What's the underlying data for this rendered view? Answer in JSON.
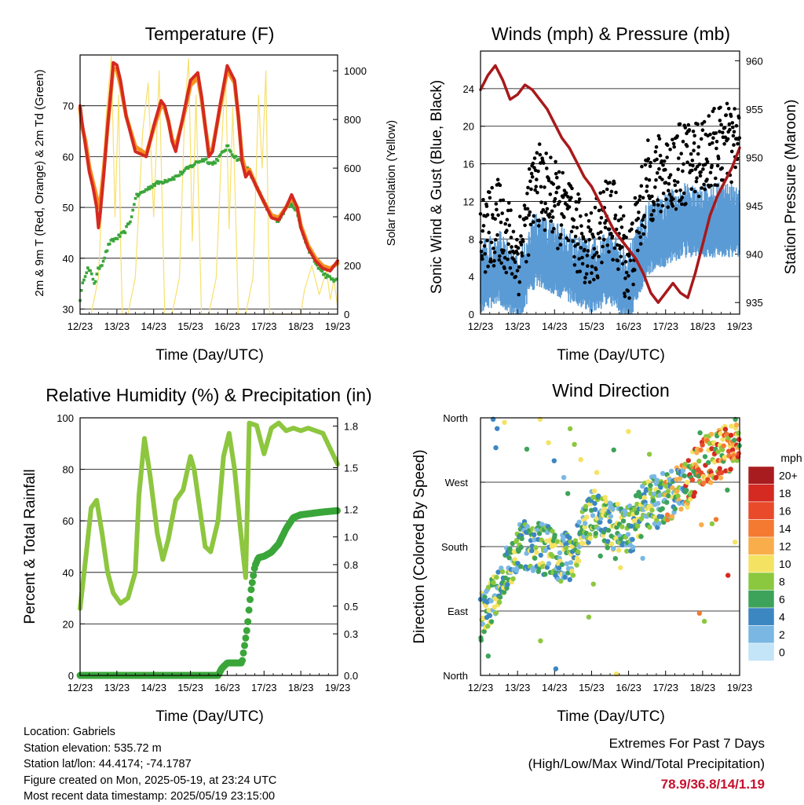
{
  "info": {
    "location": "Location: Gabriels",
    "elevation": "Station elevation: 535.72 m",
    "latlon": "Station lat/lon: 44.4174; -74.1787",
    "created": "Figure created on Mon, 2025-05-19, at 23:24 UTC",
    "recent": "Most recent data timestamp: 2025/05/19 23:15:00"
  },
  "extremes": {
    "title": "Extremes For Past 7 Days",
    "subtitle": "(High/Low/Max Wind/Total Precipitation)",
    "values": "78.9/36.8/14/1.19"
  },
  "chart_data": [
    {
      "type": "line",
      "title": "Temperature (F)",
      "xlabel": "Time (Day/UTC)",
      "ylabel": "2m & 9m T (Red, Orange) & 2m Td (Green)",
      "ylabel_right": "Solar Insolation (Yellow)",
      "x_ticks": [
        "12/23",
        "13/23",
        "14/23",
        "15/23",
        "16/23",
        "17/23",
        "18/23",
        "19/23"
      ],
      "ylim": [
        29,
        80
      ],
      "y_ticks": [
        30,
        40,
        50,
        60,
        70
      ],
      "ylim_right": [
        0,
        1065
      ],
      "y_ticks_right": [
        0,
        200,
        400,
        600,
        800,
        1000
      ],
      "grid_y": [
        30,
        40,
        50,
        60,
        70
      ],
      "colors": {
        "temp2m": "#d42a21",
        "temp9m": "#f6911e",
        "dewpoint": "#3aa63a",
        "solar": "#f7e06b"
      },
      "series": [
        {
          "key": "temp2m",
          "x": [
            0,
            0.05,
            0.15,
            0.25,
            0.35,
            0.45,
            0.5,
            0.55,
            0.65,
            0.75,
            0.85,
            0.9,
            1.0,
            1.1,
            1.25,
            1.5,
            1.8,
            2.0,
            2.2,
            2.3,
            2.4,
            2.5,
            2.6,
            2.8,
            3.0,
            3.2,
            3.3,
            3.4,
            3.5,
            3.6,
            3.8,
            4.0,
            4.2,
            4.3,
            4.4,
            4.5,
            4.6,
            4.8,
            5.0,
            5.2,
            5.4,
            5.6,
            5.75,
            5.9,
            6.0,
            6.2,
            6.4,
            6.6,
            6.8,
            7.0
          ],
          "values": [
            70,
            67,
            62,
            57,
            54,
            50,
            46,
            49,
            57,
            66,
            74,
            78.5,
            78,
            75,
            68,
            61,
            60,
            66,
            71,
            70,
            67,
            63,
            61,
            68,
            75,
            76.5,
            72,
            66,
            60,
            61,
            70,
            77.9,
            75,
            68,
            59,
            56,
            57,
            54,
            51,
            48,
            47.5,
            50,
            52.5,
            50,
            46,
            42,
            39.5,
            38,
            37.5,
            39.5
          ]
        },
        {
          "key": "temp9m",
          "x": [
            0,
            0.05,
            0.15,
            0.25,
            0.35,
            0.45,
            0.5,
            0.55,
            0.65,
            0.75,
            0.85,
            0.9,
            1.0,
            1.1,
            1.25,
            1.5,
            1.8,
            2.0,
            2.2,
            2.3,
            2.4,
            2.5,
            2.6,
            2.8,
            3.0,
            3.2,
            3.3,
            3.4,
            3.5,
            3.6,
            3.8,
            4.0,
            4.2,
            4.3,
            4.4,
            4.5,
            4.6,
            4.8,
            5.0,
            5.2,
            5.4,
            5.6,
            5.75,
            5.9,
            6.0,
            6.2,
            6.4,
            6.6,
            6.8,
            7.0
          ],
          "values": [
            69.5,
            66,
            63,
            58,
            55,
            52,
            50,
            51,
            58,
            66,
            73.5,
            77.5,
            77,
            74,
            68,
            62,
            60.5,
            65.5,
            70,
            69.5,
            67,
            63.5,
            62,
            67.5,
            74,
            75.5,
            71.5,
            66,
            61,
            61.5,
            69.5,
            77,
            74.5,
            68,
            60,
            57,
            57.5,
            54,
            51,
            48.5,
            48,
            50,
            52,
            50,
            46.5,
            42.5,
            40,
            38.5,
            38,
            39
          ]
        },
        {
          "key": "dewpoint",
          "x": [
            0,
            0.1,
            0.2,
            0.3,
            0.4,
            0.5,
            0.6,
            0.8,
            1.0,
            1.2,
            1.4,
            1.5,
            1.7,
            1.9,
            2.0,
            2.2,
            2.4,
            2.6,
            2.8,
            3.0,
            3.2,
            3.4,
            3.6,
            3.8,
            4.0,
            4.2,
            4.4,
            4.6,
            4.8,
            5.0,
            5.2,
            5.4,
            5.6,
            5.75,
            5.9,
            6.0,
            6.2,
            6.4,
            6.6,
            6.8,
            7.0
          ],
          "values": [
            32,
            36,
            38,
            37,
            35,
            38,
            39,
            43,
            44,
            45,
            48,
            52,
            53,
            54,
            54.5,
            55,
            55.5,
            56,
            57,
            58,
            59,
            59.5,
            58.5,
            60,
            62,
            60,
            59,
            57,
            54,
            51,
            48,
            47.5,
            50,
            51,
            49,
            46,
            42,
            39,
            37,
            36,
            35.5
          ]
        },
        {
          "key": "solar",
          "x": [
            0.3,
            0.5,
            0.7,
            0.85,
            0.95,
            1.05,
            1.1,
            1.15,
            1.3,
            1.5,
            1.7,
            1.85,
            2.0,
            2.15,
            2.3,
            2.5,
            2.7,
            2.85,
            2.95,
            3.05,
            3.15,
            3.3,
            3.5,
            3.7,
            3.85,
            3.95,
            4.05,
            4.15,
            4.3,
            4.5,
            4.7,
            4.85,
            4.95,
            5.05,
            5.15,
            5.3,
            5.5,
            5.8,
            6.0,
            6.1,
            6.3,
            6.5,
            6.7,
            6.8,
            6.9,
            7.0
          ],
          "values": [
            0,
            150,
            800,
            1060,
            400,
            900,
            300,
            0,
            0,
            150,
            750,
            950,
            400,
            1000,
            0,
            0,
            150,
            850,
            1050,
            300,
            900,
            0,
            0,
            150,
            700,
            1000,
            350,
            850,
            0,
            0,
            150,
            900,
            600,
            1000,
            0,
            0,
            0,
            0,
            0,
            100,
            200,
            80,
            180,
            60,
            140,
            30
          ]
        }
      ]
    },
    {
      "type": "scatter",
      "title": "Winds (mph) & Pressure (mb)",
      "xlabel": "Time (Day/UTC)",
      "ylabel": "Sonic Wind & Gust (Blue, Black)",
      "ylabel_right": "Station Pressure (Maroon)",
      "x_ticks": [
        "12/23",
        "13/23",
        "14/23",
        "15/23",
        "16/23",
        "17/23",
        "18/23",
        "19/23"
      ],
      "ylim": [
        0,
        28
      ],
      "y_ticks": [
        0,
        4,
        8,
        12,
        16,
        20,
        24
      ],
      "ylim_right": [
        933.8,
        961
      ],
      "y_ticks_right": [
        935,
        940,
        945,
        950,
        955,
        960
      ],
      "colors": {
        "wind": "#5b9bd5",
        "gust": "#000000",
        "pressure": "#a8191b"
      },
      "wind_profile": {
        "x": [
          0,
          0.5,
          1.0,
          1.5,
          2.0,
          2.5,
          3.0,
          3.5,
          4.0,
          4.5,
          5.0,
          5.5,
          6.0,
          6.5,
          7.0
        ],
        "mean": [
          4,
          5,
          3,
          7,
          6,
          5,
          4,
          5,
          3,
          8,
          9,
          10,
          10,
          10,
          10
        ]
      },
      "gust_profile": {
        "x": [
          0,
          0.5,
          1.0,
          1.5,
          2.0,
          2.5,
          3.0,
          3.5,
          4.0,
          4.5,
          5.0,
          5.5,
          6.0,
          6.5,
          7.0
        ],
        "mean": [
          8,
          10,
          6,
          14,
          12,
          9,
          7,
          11,
          5,
          14,
          15,
          16,
          17,
          18,
          18
        ]
      },
      "series": [
        {
          "key": "pressure",
          "x": [
            0,
            0.2,
            0.4,
            0.6,
            0.8,
            1.0,
            1.2,
            1.4,
            1.6,
            1.8,
            2.0,
            2.2,
            2.4,
            2.6,
            2.8,
            3.0,
            3.2,
            3.4,
            3.6,
            3.8,
            4.0,
            4.2,
            4.4,
            4.6,
            4.8,
            5.0,
            5.2,
            5.4,
            5.6,
            5.8,
            6.0,
            6.2,
            6.4,
            6.6,
            6.8,
            7.0
          ],
          "values": [
            957,
            958.5,
            959.5,
            958,
            956,
            956.5,
            957.5,
            957,
            956,
            955,
            953.5,
            952,
            951,
            949.5,
            948,
            947,
            945.5,
            944,
            942.5,
            941.5,
            940.5,
            939.5,
            938,
            936,
            935,
            936,
            937,
            936,
            935.5,
            938,
            941,
            944,
            946,
            947.5,
            949,
            951
          ]
        }
      ]
    },
    {
      "type": "line",
      "title": "Relative Humidity (%) & Precipitation (in)",
      "xlabel": "Time (Day/UTC)",
      "ylabel": "Percent & Total Rainfall",
      "x_ticks": [
        "12/23",
        "13/23",
        "14/23",
        "15/23",
        "16/23",
        "17/23",
        "18/23",
        "19/23"
      ],
      "ylim": [
        0,
        100
      ],
      "y_ticks": [
        0,
        20,
        40,
        60,
        80,
        100
      ],
      "ylim_right": [
        0,
        1.86
      ],
      "y_ticks_right": [
        "0.0",
        "0.3",
        "0.5",
        "0.8",
        "1.0",
        "1.2",
        "1.5",
        "1.8"
      ],
      "colors": {
        "humidity": "#8dc63f",
        "precip": "#3aa63a"
      },
      "series": [
        {
          "key": "humidity",
          "x": [
            0,
            0.15,
            0.3,
            0.45,
            0.6,
            0.75,
            0.9,
            1.1,
            1.3,
            1.5,
            1.6,
            1.75,
            1.9,
            2.1,
            2.25,
            2.4,
            2.6,
            2.8,
            3.0,
            3.1,
            3.25,
            3.4,
            3.55,
            3.75,
            3.9,
            4.05,
            4.2,
            4.35,
            4.5,
            4.6,
            4.8,
            5.0,
            5.2,
            5.4,
            5.6,
            5.8,
            6.0,
            6.2,
            6.4,
            6.6,
            6.8,
            7.0
          ],
          "values": [
            26,
            45,
            65,
            68,
            55,
            40,
            32,
            28,
            30,
            40,
            70,
            92,
            78,
            55,
            45,
            53,
            68,
            72,
            85,
            80,
            65,
            50,
            48,
            60,
            85,
            94,
            80,
            58,
            38,
            98,
            97,
            86,
            96,
            98,
            95,
            96,
            95,
            96,
            95,
            94,
            88,
            82
          ]
        },
        {
          "key": "precip",
          "x": [
            0,
            0.5,
            1.0,
            1.5,
            2.0,
            2.5,
            3.0,
            3.5,
            3.75,
            3.85,
            4.0,
            4.2,
            4.4,
            4.55,
            4.6,
            4.65,
            4.75,
            4.85,
            5.0,
            5.2,
            5.4,
            5.6,
            5.8,
            6.0,
            6.3,
            6.6,
            7.0
          ],
          "values": [
            0,
            0,
            0,
            0,
            0,
            0,
            0,
            0,
            0,
            0.05,
            0.09,
            0.09,
            0.09,
            0.36,
            0.5,
            0.62,
            0.79,
            0.85,
            0.86,
            0.89,
            0.95,
            1.06,
            1.14,
            1.16,
            1.17,
            1.18,
            1.19
          ]
        }
      ]
    },
    {
      "type": "scatter",
      "title": "Wind Direction",
      "xlabel": "Time (Day/UTC)",
      "ylabel": "Direction (Colored By Speed)",
      "x_ticks": [
        "12/23",
        "13/23",
        "14/23",
        "15/23",
        "16/23",
        "17/23",
        "18/23",
        "19/23"
      ],
      "y_ticks": [
        "North",
        "East",
        "South",
        "West",
        "North"
      ],
      "ylim": [
        0,
        360
      ],
      "colorbar_title": "mph",
      "colorbar_labels": [
        "20+",
        "18",
        "16",
        "14",
        "12",
        "10",
        "8",
        "6",
        "4",
        "2",
        "0"
      ],
      "colorbar_colors": [
        "#a81c1f",
        "#d42a21",
        "#e84a2a",
        "#f47a32",
        "#f9ae4b",
        "#f4e263",
        "#8cc83f",
        "#3ea35a",
        "#3c86c2",
        "#7ab8e3",
        "#c4e4f7"
      ],
      "direction_profile": {
        "x": [
          0,
          0.5,
          1.0,
          1.5,
          2.0,
          2.5,
          3.0,
          3.5,
          4.0,
          4.5,
          5.0,
          5.5,
          6.0,
          6.5,
          7.0
        ],
        "deg": [
          80,
          120,
          180,
          180,
          170,
          160,
          230,
          210,
          200,
          240,
          250,
          260,
          300,
          310,
          330
        ]
      }
    }
  ]
}
